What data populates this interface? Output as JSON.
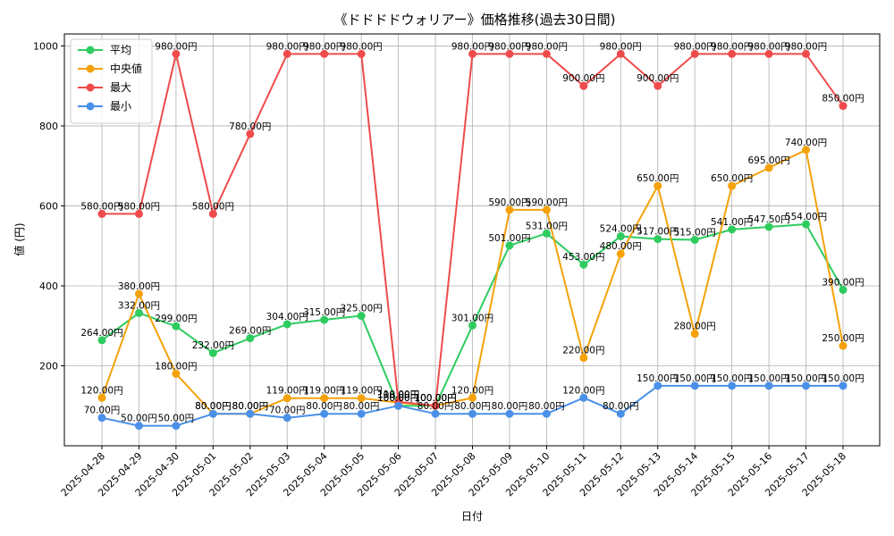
{
  "chart_data": {
    "type": "line",
    "title": "《ドドドドウォリアー》価格推移(過去30日間)",
    "xlabel": "日付",
    "ylabel": "値 (円)",
    "ylim": [
      0,
      1030
    ],
    "yticks": [
      200,
      400,
      600,
      800,
      1000
    ],
    "grid": true,
    "legend_position": "top-left",
    "value_suffix": "円",
    "categories": [
      "2025-04-28",
      "2025-04-29",
      "2025-04-30",
      "2025-05-01",
      "2025-05-02",
      "2025-05-03",
      "2025-05-04",
      "2025-05-05",
      "2025-05-06",
      "2025-05-07",
      "2025-05-08",
      "2025-05-09",
      "2025-05-10",
      "2025-05-11",
      "2025-05-12",
      "2025-05-13",
      "2025-05-14",
      "2025-05-15",
      "2025-05-16",
      "2025-05-17",
      "2025-05-18"
    ],
    "series": [
      {
        "name": "平均",
        "color": "#2ecc5f",
        "values": [
          264,
          332,
          299,
          232,
          269,
          304,
          315,
          325,
          100,
          100,
          301,
          501,
          531,
          453,
          524,
          517,
          515,
          541,
          547.5,
          554,
          390
        ]
      },
      {
        "name": "中央値",
        "color": "#f5a20a",
        "values": [
          120,
          380,
          180,
          80,
          80,
          119,
          119,
          119,
          108,
          100,
          120,
          590,
          590,
          220,
          480,
          650,
          280,
          650,
          695,
          740,
          250
        ]
      },
      {
        "name": "最大",
        "color": "#ef4b4b",
        "values": [
          580,
          580,
          980,
          580,
          780,
          980,
          980,
          980,
          110,
          100,
          980,
          980,
          980,
          900,
          980,
          900,
          980,
          980,
          980,
          980,
          850
        ]
      },
      {
        "name": "最小",
        "color": "#4a90e8",
        "values": [
          70,
          50,
          50,
          80,
          80,
          70,
          80,
          80,
          100,
          80,
          80,
          80,
          80,
          120,
          80,
          150,
          150,
          150,
          150,
          150,
          150
        ]
      }
    ]
  }
}
